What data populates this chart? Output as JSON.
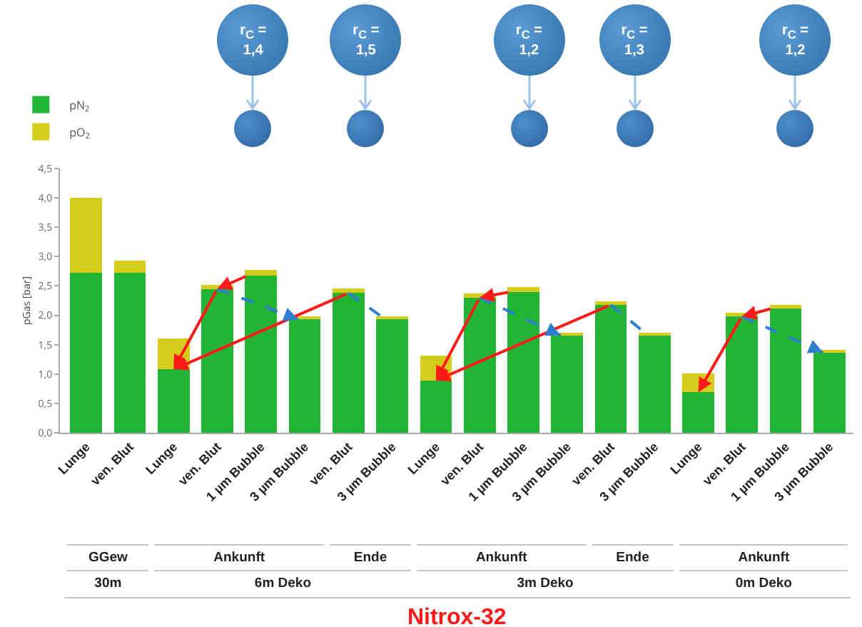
{
  "chart_data": {
    "type": "bar",
    "title": "Nitrox-32",
    "ylabel": "pGas [bar]",
    "categories": [
      "Lunge",
      "ven. Blut",
      "Lunge",
      "ven. Blut",
      "1 µm Bubble",
      "3 µm Bubble",
      "ven. Blut",
      "3 µm Bubble",
      "Lunge",
      "ven. Blut",
      "1 µm Bubble",
      "3 µm Bubble",
      "ven. Blut",
      "3 µm Bubble",
      "Lunge",
      "ven. Blut",
      "1 µm Bubble",
      "3 µm Bubble"
    ],
    "stacked": true,
    "series": [
      {
        "name": "pN$_{2}$",
        "color": "#22b533",
        "values": [
          2.73,
          2.73,
          1.08,
          2.45,
          2.68,
          1.93,
          2.38,
          1.93,
          0.89,
          2.3,
          2.4,
          1.66,
          2.18,
          1.66,
          0.69,
          1.98,
          2.12,
          1.37
        ]
      },
      {
        "name": "pO$_{2}$",
        "color": "#d6cc1c",
        "values": [
          1.27,
          0.2,
          0.52,
          0.07,
          0.09,
          0.05,
          0.08,
          0.05,
          0.42,
          0.07,
          0.08,
          0.04,
          0.06,
          0.04,
          0.32,
          0.06,
          0.06,
          0.03
        ]
      }
    ],
    "ylim": [
      0,
      4.5
    ],
    "yticks": [
      {
        "value": 0,
        "label": "0,0"
      },
      {
        "value": 0.5,
        "label": "0,5"
      },
      {
        "value": 1,
        "label": "1,0"
      },
      {
        "value": 1.5,
        "label": "1,5"
      },
      {
        "value": 2,
        "label": "2,0"
      },
      {
        "value": 2.5,
        "label": "2,5"
      },
      {
        "value": 3,
        "label": "3,0"
      },
      {
        "value": 3.5,
        "label": "3,5"
      },
      {
        "value": 4,
        "label": "4,0"
      },
      {
        "value": 4.5,
        "label": "4,5"
      }
    ],
    "legend": "top left",
    "annotations": [
      "r$_{C}$ =\n1,4",
      "r$_{C}$ =\n1,5",
      "r$_{C}$ =\n1,2",
      "r$_{C}$ =\n1,3",
      "r$_{C}$ =\n1,2",
      "GGew",
      "Ankunft",
      "Ende",
      "Ankunft",
      "Ende",
      "Ankunft",
      "30m",
      "6m Deko",
      "3m Deko",
      "0m Deko"
    ]
  }
}
